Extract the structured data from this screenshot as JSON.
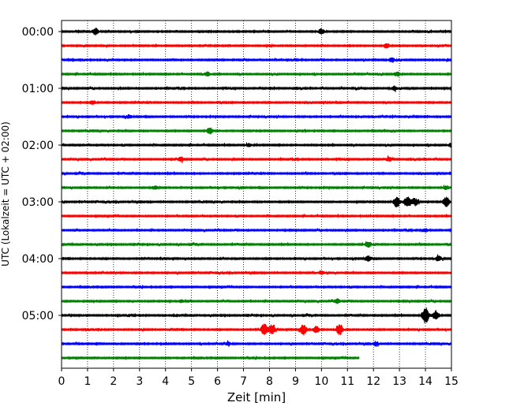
{
  "chart_data": {
    "type": "line",
    "title": "",
    "xlabel": "Zeit  [min]",
    "ylabel": "UTC (Lokalzeit = UTC + 02:00)",
    "xlim": [
      0,
      15
    ],
    "x_ticks": [
      0,
      1,
      2,
      3,
      4,
      5,
      6,
      7,
      8,
      9,
      10,
      11,
      12,
      13,
      14,
      15
    ],
    "y_tick_labels": [
      "00:00",
      "01:00",
      "02:00",
      "03:00",
      "04:00",
      "05:00"
    ],
    "grid": "vertical dotted",
    "trace_minutes": 15,
    "row_colors": [
      "#000000",
      "#ff0000",
      "#0000ff",
      "#008000"
    ],
    "series": [
      {
        "row": 0,
        "color": "#000000",
        "events": [
          {
            "t": 1.3,
            "amp": 0.6
          },
          {
            "t": 10.0,
            "amp": 0.5
          }
        ]
      },
      {
        "row": 1,
        "color": "#ff0000",
        "events": [
          {
            "t": 12.5,
            "amp": 0.4
          }
        ]
      },
      {
        "row": 2,
        "color": "#0000ff",
        "events": [
          {
            "t": 12.7,
            "amp": 0.4
          }
        ]
      },
      {
        "row": 3,
        "color": "#008000",
        "events": [
          {
            "t": 5.6,
            "amp": 0.4
          },
          {
            "t": 12.9,
            "amp": 0.4
          }
        ]
      },
      {
        "row": 4,
        "color": "#000000",
        "events": [
          {
            "t": 12.8,
            "amp": 0.4
          }
        ]
      },
      {
        "row": 5,
        "color": "#ff0000",
        "events": [
          {
            "t": 1.2,
            "amp": 0.4
          }
        ]
      },
      {
        "row": 6,
        "color": "#0000ff",
        "events": [
          {
            "t": 2.6,
            "amp": 0.3
          }
        ]
      },
      {
        "row": 7,
        "color": "#008000",
        "events": [
          {
            "t": 5.7,
            "amp": 0.6
          }
        ]
      },
      {
        "row": 8,
        "color": "#000000",
        "events": [
          {
            "t": 7.2,
            "amp": 0.3
          },
          {
            "t": 15.0,
            "amp": 0.4
          }
        ]
      },
      {
        "row": 9,
        "color": "#ff0000",
        "events": [
          {
            "t": 4.6,
            "amp": 0.4
          },
          {
            "t": 12.6,
            "amp": 0.4
          }
        ]
      },
      {
        "row": 10,
        "color": "#0000ff",
        "events": []
      },
      {
        "row": 11,
        "color": "#008000",
        "events": [
          {
            "t": 3.6,
            "amp": 0.3
          },
          {
            "t": 14.8,
            "amp": 0.4
          }
        ]
      },
      {
        "row": 12,
        "color": "#000000",
        "events": [
          {
            "t": 12.9,
            "amp": 1.0
          },
          {
            "t": 13.3,
            "amp": 1.0
          },
          {
            "t": 13.6,
            "amp": 0.7
          },
          {
            "t": 14.8,
            "amp": 0.9
          }
        ]
      },
      {
        "row": 13,
        "color": "#ff0000",
        "events": []
      },
      {
        "row": 14,
        "color": "#0000ff",
        "events": [
          {
            "t": 14.0,
            "amp": 0.3
          }
        ]
      },
      {
        "row": 15,
        "color": "#008000",
        "events": [
          {
            "t": 11.8,
            "amp": 0.5
          }
        ]
      },
      {
        "row": 16,
        "color": "#000000",
        "events": [
          {
            "t": 11.8,
            "amp": 0.5
          },
          {
            "t": 14.5,
            "amp": 0.5
          }
        ]
      },
      {
        "row": 17,
        "color": "#ff0000",
        "events": [
          {
            "t": 10.0,
            "amp": 0.3
          }
        ]
      },
      {
        "row": 18,
        "color": "#0000ff",
        "events": []
      },
      {
        "row": 19,
        "color": "#008000",
        "events": [
          {
            "t": 10.6,
            "amp": 0.4
          },
          {
            "t": 4.6,
            "amp": 0.3
          }
        ]
      },
      {
        "row": 20,
        "color": "#000000",
        "events": [
          {
            "t": 14.0,
            "amp": 1.6
          },
          {
            "t": 14.4,
            "amp": 0.9
          }
        ]
      },
      {
        "row": 21,
        "color": "#ff0000",
        "events": [
          {
            "t": 7.8,
            "amp": 1.1
          },
          {
            "t": 8.1,
            "amp": 0.9
          },
          {
            "t": 9.3,
            "amp": 1.0
          },
          {
            "t": 9.8,
            "amp": 0.6
          },
          {
            "t": 10.7,
            "amp": 1.0
          }
        ]
      },
      {
        "row": 22,
        "color": "#0000ff",
        "events": [
          {
            "t": 6.4,
            "amp": 0.3
          },
          {
            "t": 12.1,
            "amp": 0.4
          }
        ]
      },
      {
        "row": 23,
        "color": "#008000",
        "end": 11.45,
        "events": []
      }
    ]
  }
}
